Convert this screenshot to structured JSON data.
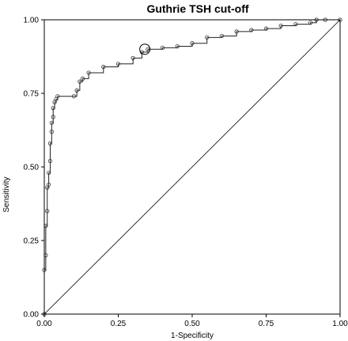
{
  "chart_data": {
    "type": "line",
    "title": "Guthrie TSH cut-off",
    "xlabel": "1-Specificity",
    "ylabel": "Sensitivity",
    "xlim": [
      0,
      1
    ],
    "ylim": [
      0,
      1
    ],
    "x_ticks": [
      "0.00",
      "0.25",
      "0.50",
      "0.75",
      "1.00"
    ],
    "y_ticks": [
      "0.00",
      "0.25",
      "0.50",
      "0.75",
      "1.00"
    ],
    "grid": false,
    "legend": "none",
    "reference_line": [
      [
        0,
        0
      ],
      [
        1,
        1
      ]
    ],
    "series": [
      {
        "x": [
          0.0,
          0.0,
          0.005,
          0.005,
          0.01,
          0.01,
          0.015,
          0.015,
          0.02,
          0.02,
          0.025,
          0.025,
          0.03,
          0.03,
          0.035,
          0.04,
          0.045,
          0.1,
          0.11,
          0.12,
          0.13,
          0.15,
          0.2,
          0.25,
          0.3,
          0.33,
          0.35,
          0.4,
          0.45,
          0.5,
          0.55,
          0.6,
          0.65,
          0.7,
          0.75,
          0.8,
          0.85,
          0.9,
          0.92,
          0.95,
          1.0
        ],
        "y": [
          0.0,
          0.15,
          0.2,
          0.3,
          0.35,
          0.43,
          0.44,
          0.48,
          0.52,
          0.58,
          0.62,
          0.65,
          0.67,
          0.7,
          0.72,
          0.73,
          0.74,
          0.74,
          0.76,
          0.79,
          0.8,
          0.82,
          0.84,
          0.85,
          0.87,
          0.89,
          0.9,
          0.905,
          0.91,
          0.92,
          0.94,
          0.945,
          0.96,
          0.965,
          0.97,
          0.98,
          0.985,
          0.99,
          1.0,
          1.0,
          1.0
        ]
      }
    ],
    "highlighted_point": {
      "x": 0.34,
      "y": 0.9
    }
  }
}
